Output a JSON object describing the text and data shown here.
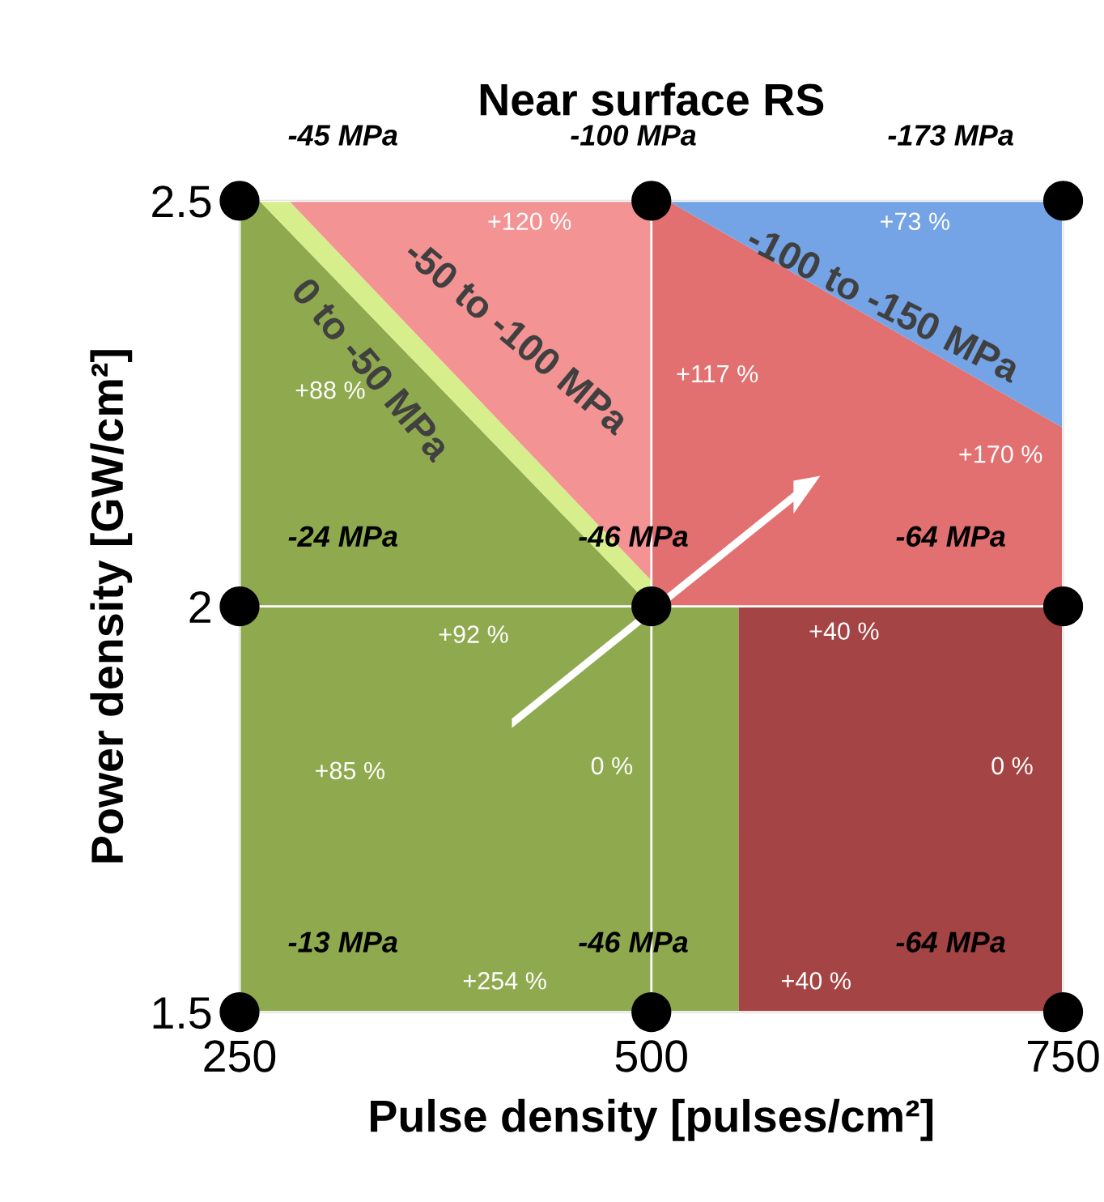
{
  "chart_data": {
    "type": "scatter",
    "title": "Near surface RS",
    "xlabel": "Pulse density [pulses/cm²]",
    "ylabel": "Power density [GW/cm²]",
    "x": [
      250,
      500,
      750,
      250,
      500,
      750,
      250,
      500,
      750
    ],
    "series": [
      {
        "color": "#000000",
        "values": [
          2.5,
          2.5,
          2.5,
          2,
          2,
          2,
          1.5,
          1.5,
          1.5
        ]
      }
    ],
    "xlim": [
      250,
      750
    ],
    "ylim": [
      1.5,
      2.5
    ],
    "xticks": [
      250,
      500,
      750
    ],
    "yticks": [
      1.5,
      2,
      2.5
    ],
    "grid": true,
    "marker": "circle",
    "annotations": [
      {
        "text": "-45 MPa",
        "x": 250,
        "y": 2.5
      },
      {
        "text": "-100 MPa",
        "x": 500,
        "y": 2.5
      },
      {
        "text": "-173 MPa",
        "x": 750,
        "y": 2.5
      },
      {
        "text": "-24 MPa",
        "x": 250,
        "y": 2
      },
      {
        "text": "-46 MPa",
        "x": 500,
        "y": 2
      },
      {
        "text": "-64 MPa",
        "x": 750,
        "y": 2
      },
      {
        "text": "-13 MPa",
        "x": 250,
        "y": 1.5
      },
      {
        "text": "-46 MPa",
        "x": 500,
        "y": 1.5
      },
      {
        "text": "-64 MPa",
        "x": 750,
        "y": 1.5
      },
      "+120 %",
      "+73 %",
      "+117 %",
      "+88 %",
      "+170 %",
      "+92 %",
      "+40 %",
      "+85 %",
      "0 %",
      "0 %",
      "+254 %",
      "+40 %",
      "0 to -50 MPa",
      "-50 to -100 MPa",
      "-100 to -150 MPa"
    ]
  }
}
